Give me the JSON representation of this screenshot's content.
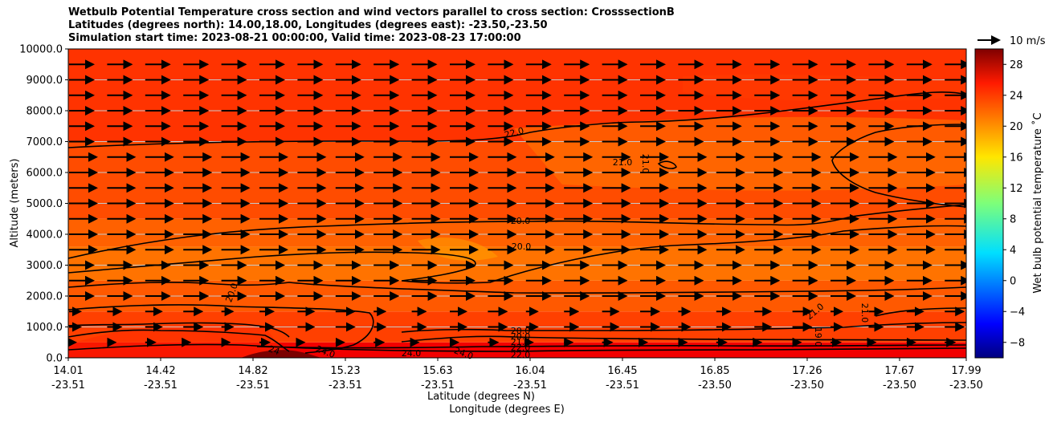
{
  "chart_data": {
    "type": "heatmap",
    "title_lines": [
      "Wetbulb Potential Temperature cross section and wind vectors parallel to cross section: CrosssectionB",
      "Latitudes (degrees north): 14.00,18.00, Longitudes (degrees east): -23.50,-23.50",
      "Simulation start time: 2023-08-21 00:00:00, Valid time: 2023-08-23 17:00:00"
    ],
    "ylabel": "Altitude (meters)",
    "xlabel_lat": "Latitude (degrees N)",
    "xlabel_lon": "Longitude (degrees E)",
    "ylim": [
      0,
      10000
    ],
    "y_ticks": [
      "0.0",
      "1000.0",
      "2000.0",
      "3000.0",
      "4000.0",
      "5000.0",
      "6000.0",
      "7000.0",
      "8000.0",
      "9000.0",
      "10000.0"
    ],
    "x_ticks_lat": [
      "14.01",
      "14.42",
      "14.82",
      "15.23",
      "15.63",
      "16.04",
      "16.45",
      "16.85",
      "17.26",
      "17.67",
      "17.99"
    ],
    "x_ticks_lon": [
      "-23.51",
      "-23.51",
      "-23.51",
      "-23.51",
      "-23.51",
      "-23.51",
      "-23.51",
      "-23.50",
      "-23.50",
      "-23.50",
      "-23.50"
    ],
    "colorbar": {
      "label": "Wet bulb potential temperature ˚C",
      "range": [
        -10,
        30
      ],
      "ticks": [
        "−8",
        "−4",
        "0",
        "4",
        "8",
        "12",
        "16",
        "20",
        "24",
        "28"
      ]
    },
    "wind_key_label": "10 m/s",
    "contour_labels": [
      "22.0",
      "21.0",
      "21.0",
      "20.0",
      "20.0",
      "20.0",
      "21.0",
      "21.0",
      "19.0",
      "24",
      "24.0",
      "24.0",
      "24.0",
      "20.0",
      "20.0",
      "21.0",
      "22.0",
      "22.0"
    ],
    "color_bands": [
      {
        "alt_from": 0,
        "alt_to": 500,
        "value": 25.5
      },
      {
        "alt_from": 500,
        "alt_to": 1500,
        "value": 22.5
      },
      {
        "alt_from": 1500,
        "alt_to": 2500,
        "value": 21.5
      },
      {
        "alt_from": 2500,
        "alt_to": 3600,
        "value": 20.5
      },
      {
        "alt_from": 3600,
        "alt_to": 4500,
        "value": 21.2
      },
      {
        "alt_from": 4500,
        "alt_to": 7000,
        "value": 22.0
      },
      {
        "alt_from": 7000,
        "alt_to": 10000,
        "value": 23.0
      }
    ]
  }
}
